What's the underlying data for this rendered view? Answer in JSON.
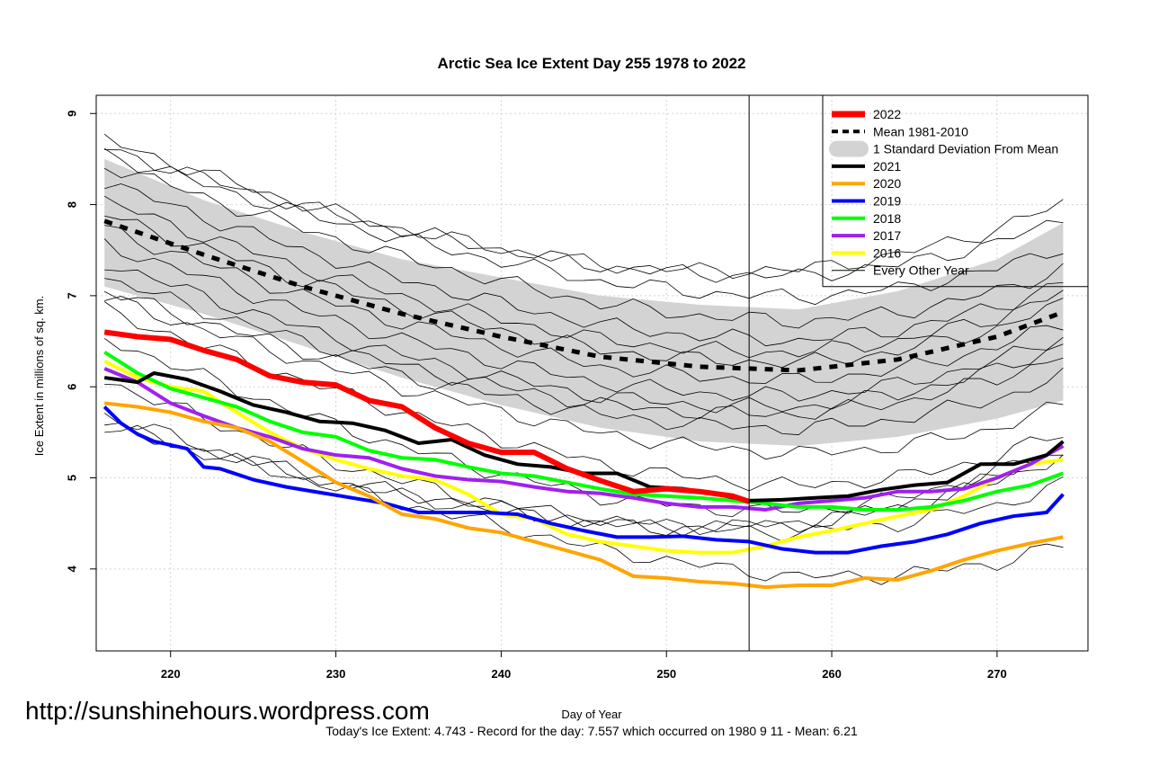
{
  "chart_data": {
    "type": "line",
    "title": "Arctic Sea Ice Extent Day 255 1978 to 2022",
    "xlabel": "Day of Year",
    "ylabel": "Ice Extent in millions of sq. km.",
    "xlim": [
      215.5,
      275.5
    ],
    "ylim": [
      3.1,
      9.2
    ],
    "xticks": [
      220,
      230,
      240,
      250,
      260,
      270
    ],
    "yticks": [
      4,
      5,
      6,
      7,
      8,
      9
    ],
    "grid": true,
    "marker_day": 255,
    "legend_position": "top-right",
    "legend": [
      {
        "label": "2022",
        "color": "#ff0000",
        "style": "solid"
      },
      {
        "label": "Mean 1981-2010",
        "color": "#000000",
        "style": "dashed"
      },
      {
        "label": "1 Standard Deviation From Mean",
        "color": "#d3d3d3",
        "style": "band"
      },
      {
        "label": "2021",
        "color": "#000000",
        "style": "solid"
      },
      {
        "label": "2020",
        "color": "#ffa500",
        "style": "solid"
      },
      {
        "label": "2019",
        "color": "#0000ff",
        "style": "solid"
      },
      {
        "label": "2018",
        "color": "#00ff00",
        "style": "solid"
      },
      {
        "label": "2017",
        "color": "#a020f0",
        "style": "solid"
      },
      {
        "label": "2016",
        "color": "#ffff00",
        "style": "solid"
      },
      {
        "label": "Every Other Year",
        "color": "#000000",
        "style": "thin"
      }
    ],
    "x": [
      216,
      222,
      228,
      234,
      240,
      246,
      252,
      258,
      264,
      270,
      274
    ],
    "mean": [
      7.82,
      7.45,
      7.1,
      6.8,
      6.55,
      6.33,
      6.22,
      6.18,
      6.3,
      6.55,
      6.82
    ],
    "std_upper": [
      8.5,
      8.05,
      7.7,
      7.4,
      7.2,
      7.0,
      6.9,
      6.85,
      7.05,
      7.4,
      7.8
    ],
    "std_lower": [
      7.1,
      6.8,
      6.45,
      6.1,
      5.8,
      5.55,
      5.4,
      5.35,
      5.45,
      5.65,
      5.85
    ],
    "series": [
      {
        "name": "2022",
        "color": "#ff0000",
        "width": 6,
        "x": [
          216,
          218,
          220,
          222,
          224,
          226,
          228,
          230,
          232,
          234,
          236,
          238,
          240,
          242,
          244,
          246,
          248,
          250,
          252,
          254,
          255
        ],
        "values": [
          6.6,
          6.55,
          6.52,
          6.4,
          6.3,
          6.12,
          6.05,
          6.02,
          5.85,
          5.78,
          5.55,
          5.38,
          5.28,
          5.28,
          5.1,
          4.97,
          4.85,
          4.88,
          4.85,
          4.8,
          4.74
        ]
      },
      {
        "name": "2021",
        "color": "#000000",
        "width": 4,
        "x": [
          216,
          218,
          219,
          221,
          223,
          225,
          227,
          229,
          231,
          233,
          235,
          237,
          239,
          241,
          243,
          245,
          247,
          249,
          251,
          253,
          255,
          257,
          259,
          261,
          263,
          265,
          267,
          269,
          271,
          273,
          274
        ],
        "values": [
          6.1,
          6.05,
          6.15,
          6.08,
          5.95,
          5.8,
          5.72,
          5.62,
          5.6,
          5.52,
          5.38,
          5.42,
          5.25,
          5.15,
          5.12,
          5.05,
          5.05,
          4.9,
          4.88,
          4.82,
          4.75,
          4.76,
          4.78,
          4.8,
          4.87,
          4.92,
          4.95,
          5.15,
          5.15,
          5.25,
          5.4
        ]
      },
      {
        "name": "2020",
        "color": "#ffa500",
        "width": 4,
        "x": [
          216,
          218,
          220,
          222,
          224,
          226,
          228,
          230,
          232,
          234,
          236,
          238,
          240,
          242,
          244,
          246,
          248,
          250,
          252,
          254,
          256,
          258,
          260,
          262,
          264,
          266,
          268,
          270,
          272,
          274
        ],
        "values": [
          5.82,
          5.78,
          5.72,
          5.62,
          5.55,
          5.4,
          5.18,
          4.95,
          4.8,
          4.6,
          4.55,
          4.45,
          4.4,
          4.3,
          4.2,
          4.1,
          3.92,
          3.9,
          3.86,
          3.84,
          3.8,
          3.82,
          3.82,
          3.9,
          3.88,
          3.98,
          4.1,
          4.2,
          4.28,
          4.35
        ]
      },
      {
        "name": "2019",
        "color": "#0000ff",
        "width": 4,
        "x": [
          216,
          217,
          218,
          219,
          221,
          222,
          223,
          225,
          227,
          229,
          231,
          233,
          235,
          237,
          239,
          241,
          243,
          245,
          247,
          249,
          251,
          253,
          255,
          257,
          259,
          261,
          263,
          265,
          267,
          269,
          271,
          273,
          274
        ],
        "values": [
          5.78,
          5.6,
          5.48,
          5.4,
          5.32,
          5.12,
          5.1,
          4.98,
          4.9,
          4.84,
          4.78,
          4.72,
          4.62,
          4.62,
          4.62,
          4.6,
          4.5,
          4.42,
          4.35,
          4.35,
          4.36,
          4.32,
          4.3,
          4.22,
          4.18,
          4.18,
          4.25,
          4.3,
          4.38,
          4.5,
          4.58,
          4.62,
          4.82
        ]
      },
      {
        "name": "2018",
        "color": "#00ff00",
        "width": 4,
        "x": [
          216,
          218,
          220,
          222,
          224,
          226,
          228,
          230,
          232,
          234,
          236,
          238,
          240,
          242,
          244,
          246,
          248,
          250,
          252,
          254,
          256,
          258,
          260,
          262,
          264,
          266,
          268,
          270,
          272,
          274
        ],
        "values": [
          6.38,
          6.15,
          5.98,
          5.88,
          5.78,
          5.62,
          5.5,
          5.45,
          5.3,
          5.22,
          5.2,
          5.12,
          5.05,
          5.02,
          4.95,
          4.88,
          4.82,
          4.8,
          4.78,
          4.75,
          4.72,
          4.68,
          4.68,
          4.65,
          4.65,
          4.68,
          4.75,
          4.85,
          4.92,
          5.05
        ]
      },
      {
        "name": "2017",
        "color": "#a020f0",
        "width": 4,
        "x": [
          216,
          218,
          220,
          222,
          224,
          226,
          228,
          230,
          232,
          234,
          236,
          238,
          240,
          242,
          244,
          246,
          248,
          250,
          252,
          254,
          256,
          258,
          260,
          262,
          264,
          266,
          268,
          270,
          272,
          274
        ],
        "values": [
          6.2,
          6.05,
          5.82,
          5.68,
          5.55,
          5.45,
          5.32,
          5.25,
          5.22,
          5.1,
          5.02,
          4.98,
          4.96,
          4.9,
          4.85,
          4.83,
          4.78,
          4.72,
          4.68,
          4.68,
          4.65,
          4.72,
          4.75,
          4.78,
          4.85,
          4.85,
          4.88,
          5.0,
          5.15,
          5.35
        ]
      },
      {
        "name": "2016",
        "color": "#ffff00",
        "width": 4,
        "x": [
          216,
          218,
          220,
          222,
          224,
          226,
          228,
          230,
          232,
          234,
          236,
          238,
          240,
          242,
          244,
          246,
          248,
          250,
          252,
          254,
          256,
          258,
          260,
          262,
          264,
          266,
          268,
          270,
          272,
          274
        ],
        "values": [
          6.28,
          6.1,
          6.0,
          5.95,
          5.72,
          5.5,
          5.32,
          5.2,
          5.1,
          5.02,
          4.98,
          4.82,
          4.6,
          4.55,
          4.38,
          4.3,
          4.25,
          4.2,
          4.18,
          4.18,
          4.25,
          4.35,
          4.42,
          4.5,
          4.58,
          4.65,
          4.8,
          5.0,
          5.15,
          5.2
        ]
      }
    ]
  },
  "footer": {
    "watermark": "http://sunshinehours.wordpress.com",
    "summary": "Today's Ice Extent: 4.743  - Record for the day: 7.557 which occurred on 1980 9 11  - Mean: 6.21"
  }
}
